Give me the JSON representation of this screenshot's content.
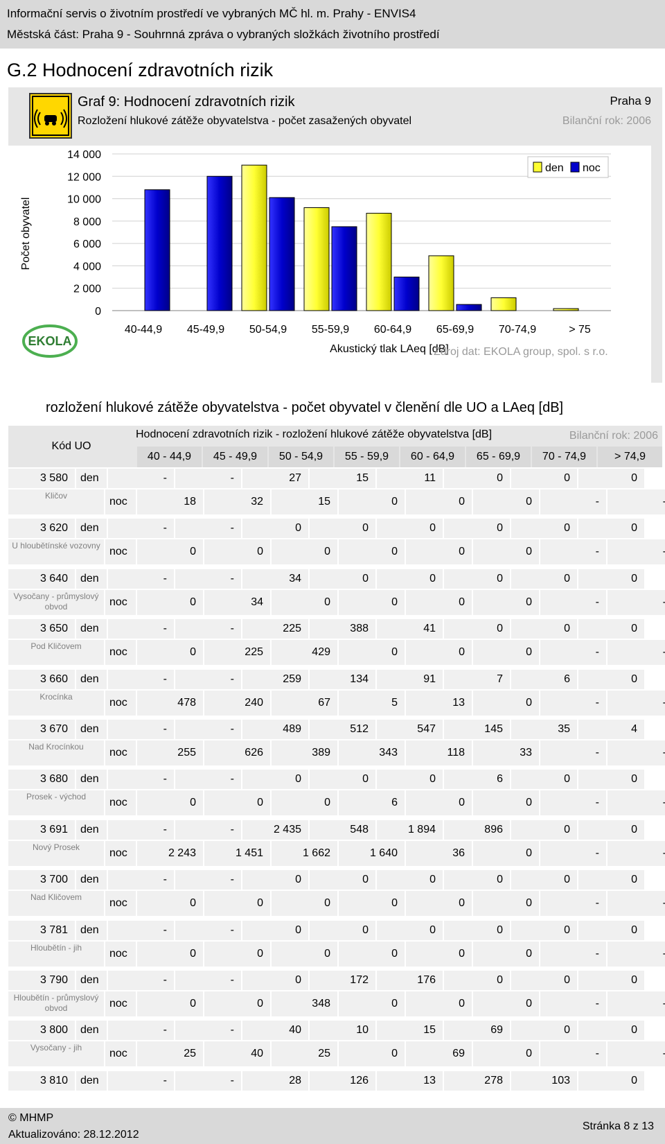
{
  "header": {
    "line1": "Informační servis o životním prostředí ve vybraných MČ hl. m. Prahy - ENVIS4",
    "line2": "Městská část: Praha 9 - Souhrnná zpráva o vybraných složkách životního prostředí"
  },
  "section_title": "G.2  Hodnocení zdravotních rizik",
  "chart_header": {
    "title": "Graf 9: Hodnocení zdravotních rizik",
    "subtitle": "Rozložení hlukové zátěže obyvatelstva - počet zasažených obyvatel",
    "region": "Praha 9",
    "year": "Bilanční rok: 2006",
    "icon": "noise-warning-icon"
  },
  "chart_data": {
    "type": "bar",
    "categories": [
      "40-44,9",
      "45-49,9",
      "50-54,9",
      "55-59,9",
      "60-64,9",
      "65-69,9",
      "70-74,9",
      "> 75"
    ],
    "series": [
      {
        "name": "den",
        "color": "#ffff33",
        "values": [
          0,
          0,
          13000,
          9200,
          8700,
          4900,
          1150,
          180
        ]
      },
      {
        "name": "noc",
        "color": "#0000cc",
        "values": [
          10800,
          12000,
          10100,
          7500,
          3000,
          550,
          0,
          0
        ]
      }
    ],
    "ylabel": "Počet obyvatel",
    "xlabel": "Akustický tlak LAeq [dB]",
    "ylim": [
      0,
      14000
    ],
    "yticks": [
      "0",
      "2 000",
      "4 000",
      "6 000",
      "8 000",
      "10 000",
      "12 000",
      "14 000"
    ],
    "legend_position": "top-right",
    "grid": true,
    "source": "Zdroj dat: EKOLA group, spol. s r.o.",
    "logo_text": "EKOLA"
  },
  "table_title": "rozložení hlukové zátěže obyvatelstva - počet obyvatel v členění dle UO a LAeq [dB]",
  "table": {
    "kod_header": "Kód UO",
    "title": "Hodnocení zdravotních rizik - rozložení hlukové zátěže obyvatelstva [dB]",
    "year": "Bilanční rok: 2006",
    "columns": [
      "40 - 44,9",
      "45 - 49,9",
      "50 - 54,9",
      "55 - 59,9",
      "60 - 64,9",
      "65 - 69,9",
      "70 - 74,9",
      "> 74,9"
    ],
    "den_label": "den",
    "noc_label": "noc",
    "rows": [
      {
        "kod": "3 580",
        "name": "Kličov",
        "den": [
          "-",
          "-",
          "27",
          "15",
          "11",
          "0",
          "0",
          "0"
        ],
        "noc": [
          "18",
          "32",
          "15",
          "0",
          "0",
          "0",
          "-",
          "-"
        ]
      },
      {
        "kod": "3 620",
        "name": "U hloubětínské vozovny",
        "den": [
          "-",
          "-",
          "0",
          "0",
          "0",
          "0",
          "0",
          "0"
        ],
        "noc": [
          "0",
          "0",
          "0",
          "0",
          "0",
          "0",
          "-",
          "-"
        ]
      },
      {
        "kod": "3 640",
        "name": "Vysočany - průmyslový obvod",
        "den": [
          "-",
          "-",
          "34",
          "0",
          "0",
          "0",
          "0",
          "0"
        ],
        "noc": [
          "0",
          "34",
          "0",
          "0",
          "0",
          "0",
          "-",
          "-"
        ]
      },
      {
        "kod": "3 650",
        "name": "Pod Kličovem",
        "den": [
          "-",
          "-",
          "225",
          "388",
          "41",
          "0",
          "0",
          "0"
        ],
        "noc": [
          "0",
          "225",
          "429",
          "0",
          "0",
          "0",
          "-",
          "-"
        ]
      },
      {
        "kod": "3 660",
        "name": "Krocínka",
        "den": [
          "-",
          "-",
          "259",
          "134",
          "91",
          "7",
          "6",
          "0"
        ],
        "noc": [
          "478",
          "240",
          "67",
          "5",
          "13",
          "0",
          "-",
          "-"
        ]
      },
      {
        "kod": "3 670",
        "name": "Nad Krocínkou",
        "den": [
          "-",
          "-",
          "489",
          "512",
          "547",
          "145",
          "35",
          "4"
        ],
        "noc": [
          "255",
          "626",
          "389",
          "343",
          "118",
          "33",
          "-",
          "-"
        ]
      },
      {
        "kod": "3 680",
        "name": "Prosek - východ",
        "den": [
          "-",
          "-",
          "0",
          "0",
          "0",
          "6",
          "0",
          "0"
        ],
        "noc": [
          "0",
          "0",
          "0",
          "6",
          "0",
          "0",
          "-",
          "-"
        ]
      },
      {
        "kod": "3 691",
        "name": "Nový Prosek",
        "den": [
          "-",
          "-",
          "2 435",
          "548",
          "1 894",
          "896",
          "0",
          "0"
        ],
        "noc": [
          "2 243",
          "1 451",
          "1 662",
          "1 640",
          "36",
          "0",
          "-",
          "-"
        ]
      },
      {
        "kod": "3 700",
        "name": "Nad Kličovem",
        "den": [
          "-",
          "-",
          "0",
          "0",
          "0",
          "0",
          "0",
          "0"
        ],
        "noc": [
          "0",
          "0",
          "0",
          "0",
          "0",
          "0",
          "-",
          "-"
        ]
      },
      {
        "kod": "3 781",
        "name": "Hloubětín - jih",
        "den": [
          "-",
          "-",
          "0",
          "0",
          "0",
          "0",
          "0",
          "0"
        ],
        "noc": [
          "0",
          "0",
          "0",
          "0",
          "0",
          "0",
          "-",
          "-"
        ]
      },
      {
        "kod": "3 790",
        "name": "Hloubětín - průmyslový obvod",
        "den": [
          "-",
          "-",
          "0",
          "172",
          "176",
          "0",
          "0",
          "0"
        ],
        "noc": [
          "0",
          "0",
          "348",
          "0",
          "0",
          "0",
          "-",
          "-"
        ]
      },
      {
        "kod": "3 800",
        "name": "Vysočany - jih",
        "den": [
          "-",
          "-",
          "40",
          "10",
          "15",
          "69",
          "0",
          "0"
        ],
        "noc": [
          "25",
          "40",
          "25",
          "0",
          "69",
          "0",
          "-",
          "-"
        ]
      },
      {
        "kod": "3 810",
        "name": "",
        "den": [
          "-",
          "-",
          "28",
          "126",
          "13",
          "278",
          "103",
          "0"
        ],
        "noc": []
      }
    ]
  },
  "footer": {
    "copyright": "© MHMP",
    "updated": "Aktualizováno: 28.12.2012",
    "page": "Stránka 8 z 13"
  }
}
